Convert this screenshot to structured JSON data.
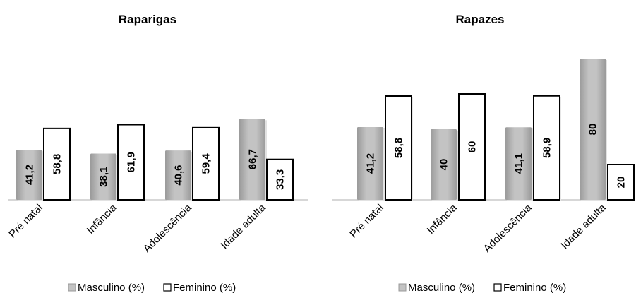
{
  "colors": {
    "masculino_fill": "#c3c3c3",
    "masculino_edge": "#9a9a9a",
    "feminino_fill": "#ffffff",
    "feminino_stroke": "#000000",
    "axis": "#bfbfbf"
  },
  "legend": {
    "masculino": "Masculino (%)",
    "feminino": "Feminino (%)"
  },
  "chart_data": [
    {
      "type": "bar",
      "title": "Raparigas",
      "categories": [
        "Pré natal",
        "Infância",
        "Adolescência",
        "Idade adulta"
      ],
      "series": [
        {
          "name": "Masculino (%)",
          "values": [
            41.2,
            38.1,
            40.6,
            66.7
          ],
          "labels": [
            "41,2",
            "38,1",
            "40,6",
            "66,7"
          ]
        },
        {
          "name": "Feminino (%)",
          "values": [
            58.8,
            61.9,
            59.4,
            33.3
          ],
          "labels": [
            "58,8",
            "61,9",
            "59,4",
            "33,3"
          ]
        }
      ],
      "ylim": [
        0,
        70
      ],
      "legend_position": "bottom",
      "grid": false
    },
    {
      "type": "bar",
      "title": "Rapazes",
      "categories": [
        "Pré natal",
        "Infância",
        "Adolescência",
        "Idade adulta"
      ],
      "series": [
        {
          "name": "Masculino (%)",
          "values": [
            41.2,
            40,
            41.1,
            80
          ],
          "labels": [
            "41,2",
            "40",
            "41,1",
            "80"
          ]
        },
        {
          "name": "Feminino (%)",
          "values": [
            58.8,
            60,
            58.9,
            20
          ],
          "labels": [
            "58,8",
            "60",
            "58,9",
            "20"
          ]
        }
      ],
      "ylim": [
        0,
        81
      ],
      "legend_position": "bottom",
      "grid": false
    }
  ]
}
